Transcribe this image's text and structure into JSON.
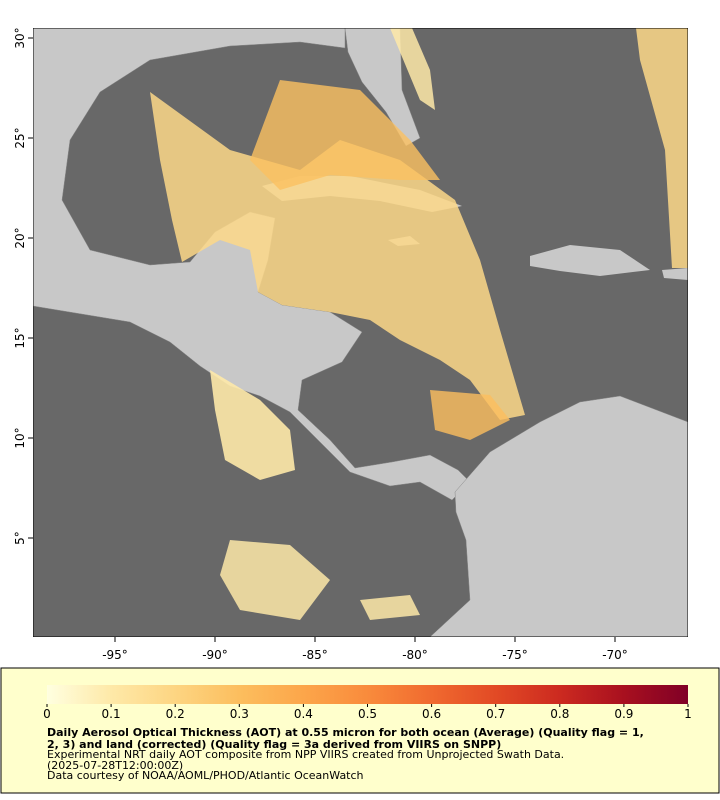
{
  "chart_data": {
    "type": "map",
    "xlim": [
      -99.1,
      -66.35
    ],
    "ylim": [
      0.05,
      30.5
    ],
    "xticks": [
      {
        "value": -95,
        "label": "-95°"
      },
      {
        "value": -90,
        "label": "-90°"
      },
      {
        "value": -85,
        "label": "-85°"
      },
      {
        "value": -80,
        "label": "-80°"
      },
      {
        "value": -75,
        "label": "-75°"
      },
      {
        "value": -70,
        "label": "-70°"
      }
    ],
    "yticks": [
      {
        "value": 5,
        "label": "5°"
      },
      {
        "value": 10,
        "label": "10°"
      },
      {
        "value": 15,
        "label": "15°"
      },
      {
        "value": 20,
        "label": "20°"
      },
      {
        "value": 25,
        "label": "25°"
      },
      {
        "value": 30,
        "label": "30°"
      }
    ],
    "colorbar": {
      "range": [
        0,
        1
      ],
      "ticks": [
        0,
        0.1,
        0.2,
        0.3,
        0.4,
        0.5,
        0.6,
        0.7,
        0.8,
        0.9,
        1
      ],
      "colors": [
        "#ffffe0",
        "#fee9a8",
        "#fdd582",
        "#fcbe5e",
        "#fca64a",
        "#f98b3c",
        "#f06a2f",
        "#e24a25",
        "#cc2a20",
        "#a8101f",
        "#800026"
      ]
    },
    "caption": [
      "Daily Aerosol Optical Thickness (AOT) at 0.55 micron for both ocean (Average) (Quality flag = 1,",
      "2, 3) and land (corrected) (Quality flag = 3a derived from VIIRS on SNPP)",
      "Experimental NRT daily AOT composite from NPP VIIRS created from Unprojected Swath Data.",
      "(2025-07-28T12:00:00Z)",
      "Data courtesy of NOAA/AOML/PHOD/Atlantic OceanWatch"
    ]
  }
}
